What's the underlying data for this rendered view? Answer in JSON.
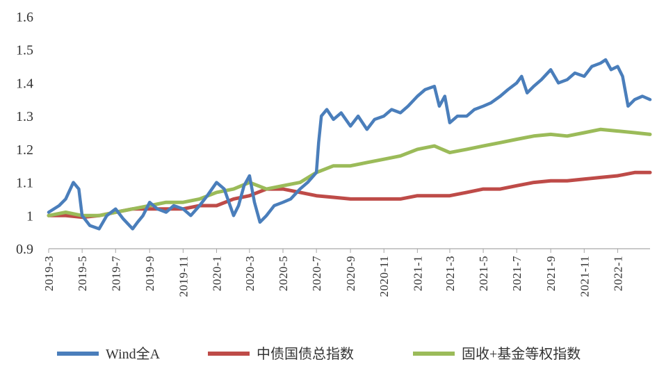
{
  "chart_data": {
    "type": "line",
    "title": "",
    "xlabel": "",
    "ylabel": "",
    "ylim": [
      0.9,
      1.6
    ],
    "yticks": [
      "0.9",
      "1",
      "1.1",
      "1.2",
      "1.3",
      "1.4",
      "1.5",
      "1.6"
    ],
    "xticks": [
      "2019-3",
      "2019-5",
      "2019-7",
      "2019-9",
      "2019-11",
      "2020-1",
      "2020-3",
      "2020-5",
      "2020-7",
      "2020-9",
      "2020-11",
      "2021-1",
      "2021-3",
      "2021-5",
      "2021-7",
      "2021-9",
      "2021-11",
      "2022-1"
    ],
    "x_range": [
      "2019-03",
      "2022-03"
    ],
    "grid": "horizontal",
    "legend_position": "bottom",
    "series": [
      {
        "name": "Wind全A",
        "color": "#4a7ebb",
        "x": [
          "2019-03",
          "2019-03-20",
          "2019-04",
          "2019-04-15",
          "2019-04-25",
          "2019-05",
          "2019-05-15",
          "2019-06",
          "2019-06-15",
          "2019-07",
          "2019-07-15",
          "2019-08",
          "2019-08-10",
          "2019-08-20",
          "2019-09",
          "2019-09-15",
          "2019-10",
          "2019-10-15",
          "2019-11",
          "2019-11-15",
          "2019-12",
          "2019-12-15",
          "2020-01",
          "2020-01-15",
          "2020-02",
          "2020-02-10",
          "2020-02-20",
          "2020-03",
          "2020-03-10",
          "2020-03-20",
          "2020-04",
          "2020-04-15",
          "2020-05",
          "2020-05-15",
          "2020-06",
          "2020-06-15",
          "2020-07",
          "2020-07-05",
          "2020-07-10",
          "2020-07-20",
          "2020-08",
          "2020-08-15",
          "2020-09",
          "2020-09-15",
          "2020-10",
          "2020-10-15",
          "2020-11",
          "2020-11-15",
          "2020-12",
          "2020-12-15",
          "2021-01",
          "2021-01-15",
          "2021-02",
          "2021-02-10",
          "2021-02-20",
          "2021-03",
          "2021-03-15",
          "2021-04",
          "2021-04-15",
          "2021-05",
          "2021-05-15",
          "2021-06",
          "2021-06-15",
          "2021-07",
          "2021-07-10",
          "2021-07-20",
          "2021-08",
          "2021-08-15",
          "2021-09",
          "2021-09-15",
          "2021-10",
          "2021-10-15",
          "2021-11",
          "2021-11-15",
          "2021-12",
          "2021-12-10",
          "2021-12-20",
          "2022-01",
          "2022-01-10",
          "2022-01-20",
          "2022-02",
          "2022-02-15",
          "2022-03"
        ],
        "values": [
          1.01,
          1.03,
          1.05,
          1.1,
          1.08,
          1.0,
          0.97,
          0.96,
          1.0,
          1.02,
          0.99,
          0.96,
          0.98,
          1.0,
          1.04,
          1.02,
          1.01,
          1.03,
          1.02,
          1.0,
          1.03,
          1.06,
          1.1,
          1.08,
          1.0,
          1.03,
          1.09,
          1.12,
          1.04,
          0.98,
          1.0,
          1.03,
          1.04,
          1.05,
          1.08,
          1.1,
          1.13,
          1.22,
          1.3,
          1.32,
          1.29,
          1.31,
          1.27,
          1.3,
          1.26,
          1.29,
          1.3,
          1.32,
          1.31,
          1.33,
          1.36,
          1.38,
          1.39,
          1.33,
          1.36,
          1.28,
          1.3,
          1.3,
          1.32,
          1.33,
          1.34,
          1.36,
          1.38,
          1.4,
          1.42,
          1.37,
          1.39,
          1.41,
          1.44,
          1.4,
          1.41,
          1.43,
          1.42,
          1.45,
          1.46,
          1.47,
          1.44,
          1.45,
          1.42,
          1.33,
          1.35,
          1.36,
          1.35
        ]
      },
      {
        "name": "中债国债总指数",
        "color": "#be4b48",
        "x": [
          "2019-03",
          "2019-04",
          "2019-05",
          "2019-06",
          "2019-07",
          "2019-08",
          "2019-09",
          "2019-10",
          "2019-11",
          "2019-12",
          "2020-01",
          "2020-02",
          "2020-03",
          "2020-04",
          "2020-05",
          "2020-06",
          "2020-07",
          "2020-08",
          "2020-09",
          "2020-10",
          "2020-11",
          "2020-12",
          "2021-01",
          "2021-02",
          "2021-03",
          "2021-04",
          "2021-05",
          "2021-06",
          "2021-07",
          "2021-08",
          "2021-09",
          "2021-10",
          "2021-11",
          "2021-12",
          "2022-01",
          "2022-02",
          "2022-03"
        ],
        "values": [
          1.0,
          1.0,
          0.995,
          1.0,
          1.01,
          1.02,
          1.02,
          1.02,
          1.02,
          1.03,
          1.03,
          1.05,
          1.06,
          1.08,
          1.08,
          1.07,
          1.06,
          1.055,
          1.05,
          1.05,
          1.05,
          1.05,
          1.06,
          1.06,
          1.06,
          1.07,
          1.08,
          1.08,
          1.09,
          1.1,
          1.105,
          1.105,
          1.11,
          1.115,
          1.12,
          1.13,
          1.13
        ]
      },
      {
        "name": "固收+基金等权指数",
        "color": "#9bbb59",
        "x": [
          "2019-03",
          "2019-04",
          "2019-05",
          "2019-06",
          "2019-07",
          "2019-08",
          "2019-09",
          "2019-10",
          "2019-11",
          "2019-12",
          "2020-01",
          "2020-02",
          "2020-03",
          "2020-04",
          "2020-05",
          "2020-06",
          "2020-07",
          "2020-08",
          "2020-09",
          "2020-10",
          "2020-11",
          "2020-12",
          "2021-01",
          "2021-02",
          "2021-03",
          "2021-04",
          "2021-05",
          "2021-06",
          "2021-07",
          "2021-08",
          "2021-09",
          "2021-10",
          "2021-11",
          "2021-12",
          "2022-01",
          "2022-02",
          "2022-03"
        ],
        "values": [
          1.0,
          1.01,
          1.0,
          1.0,
          1.01,
          1.02,
          1.03,
          1.04,
          1.04,
          1.05,
          1.07,
          1.08,
          1.1,
          1.08,
          1.09,
          1.1,
          1.13,
          1.15,
          1.15,
          1.16,
          1.17,
          1.18,
          1.2,
          1.21,
          1.19,
          1.2,
          1.21,
          1.22,
          1.23,
          1.24,
          1.245,
          1.24,
          1.25,
          1.26,
          1.255,
          1.25,
          1.245
        ]
      }
    ]
  }
}
